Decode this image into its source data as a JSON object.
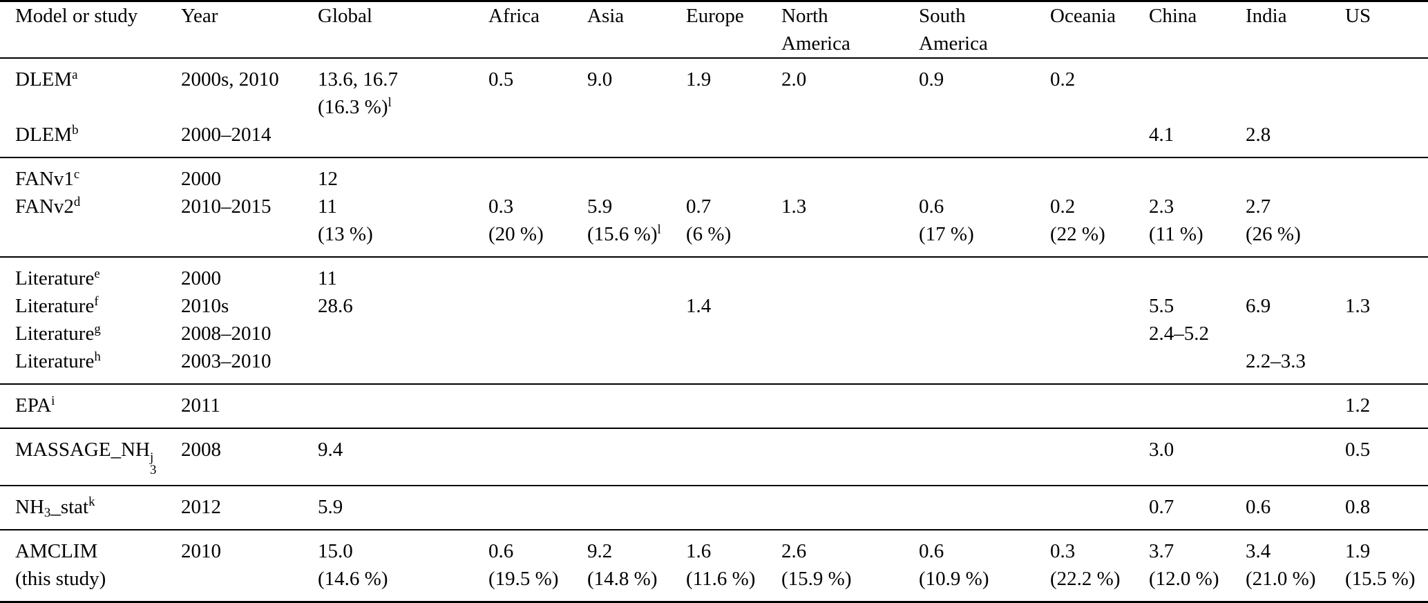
{
  "table": {
    "columns": [
      {
        "key": "model",
        "label_lines": [
          "Model or study"
        ]
      },
      {
        "key": "year",
        "label_lines": [
          "Year"
        ]
      },
      {
        "key": "global",
        "label_lines": [
          "Global"
        ]
      },
      {
        "key": "africa",
        "label_lines": [
          "Africa"
        ]
      },
      {
        "key": "asia",
        "label_lines": [
          "Asia"
        ]
      },
      {
        "key": "europe",
        "label_lines": [
          "Europe"
        ]
      },
      {
        "key": "north_america",
        "label_lines": [
          "North",
          "America"
        ]
      },
      {
        "key": "south_america",
        "label_lines": [
          "South",
          "America"
        ]
      },
      {
        "key": "oceania",
        "label_lines": [
          "Oceania"
        ]
      },
      {
        "key": "china",
        "label_lines": [
          "China"
        ]
      },
      {
        "key": "india",
        "label_lines": [
          "India"
        ]
      },
      {
        "key": "us",
        "label_lines": [
          "US"
        ]
      }
    ],
    "groups": [
      {
        "rows": [
          {
            "cells": {
              "model": [
                [
                  "DLEM",
                  {
                    "sup": "a"
                  }
                ]
              ],
              "year": [
                "2000s, 2010"
              ],
              "global": [
                "13.6, 16.7",
                [
                  "(16.3 %)",
                  {
                    "sup": "l"
                  }
                ]
              ],
              "africa": [
                "0.5"
              ],
              "asia": [
                "9.0"
              ],
              "europe": [
                "1.9"
              ],
              "north_america": [
                "2.0"
              ],
              "south_america": [
                "0.9"
              ],
              "oceania": [
                "0.2"
              ]
            }
          },
          {
            "cells": {
              "model": [
                [
                  "DLEM",
                  {
                    "sup": "b"
                  }
                ]
              ],
              "year": [
                "2000–2014"
              ],
              "china": [
                "4.1"
              ],
              "india": [
                "2.8"
              ]
            }
          }
        ]
      },
      {
        "rows": [
          {
            "cells": {
              "model": [
                [
                  "FANv1",
                  {
                    "sup": "c"
                  }
                ]
              ],
              "year": [
                "2000"
              ],
              "global": [
                "12"
              ]
            }
          },
          {
            "cells": {
              "model": [
                [
                  "FANv2",
                  {
                    "sup": "d"
                  }
                ]
              ],
              "year": [
                "2010–2015"
              ],
              "global": [
                "11",
                "(13 %)"
              ],
              "africa": [
                "0.3",
                "(20 %)"
              ],
              "asia": [
                "5.9",
                [
                  "(15.6 %)",
                  {
                    "sup": "l"
                  }
                ]
              ],
              "europe": [
                "0.7",
                "(6 %)"
              ],
              "north_america": [
                "1.3"
              ],
              "south_america": [
                "0.6",
                "(17 %)"
              ],
              "oceania": [
                "0.2",
                "(22 %)"
              ],
              "china": [
                "2.3",
                "(11 %)"
              ],
              "india": [
                "2.7",
                "(26 %)"
              ]
            }
          }
        ]
      },
      {
        "rows": [
          {
            "cells": {
              "model": [
                [
                  "Literature",
                  {
                    "sup": "e"
                  }
                ]
              ],
              "year": [
                "2000"
              ],
              "global": [
                "11"
              ]
            }
          },
          {
            "cells": {
              "model": [
                [
                  "Literature",
                  {
                    "sup": "f"
                  }
                ]
              ],
              "year": [
                "2010s"
              ],
              "global": [
                "28.6"
              ],
              "europe": [
                "1.4"
              ],
              "china": [
                "5.5"
              ],
              "india": [
                "6.9"
              ],
              "us": [
                "1.3"
              ]
            }
          },
          {
            "cells": {
              "model": [
                [
                  "Literature",
                  {
                    "sup": "g"
                  }
                ]
              ],
              "year": [
                "2008–2010"
              ],
              "china": [
                "2.4–5.2"
              ]
            }
          },
          {
            "cells": {
              "model": [
                [
                  "Literature",
                  {
                    "sup": "h"
                  }
                ]
              ],
              "year": [
                "2003–2010"
              ],
              "india": [
                "2.2–3.3"
              ]
            }
          }
        ]
      },
      {
        "rows": [
          {
            "cells": {
              "model": [
                [
                  "EPA",
                  {
                    "sup": "i"
                  }
                ]
              ],
              "year": [
                "2011"
              ],
              "us": [
                "1.2"
              ]
            }
          }
        ]
      },
      {
        "rows": [
          {
            "cells": {
              "model": [
                [
                  "MASSAGE_NH",
                  {
                    "stack": [
                      "j",
                      "3"
                    ]
                  }
                ]
              ],
              "year": [
                "2008"
              ],
              "global": [
                "9.4"
              ],
              "china": [
                "3.0"
              ],
              "us": [
                "0.5"
              ]
            }
          }
        ]
      },
      {
        "rows": [
          {
            "cells": {
              "model": [
                [
                  "NH",
                  {
                    "sub": "3"
                  },
                  "_stat",
                  {
                    "sup": "k"
                  }
                ]
              ],
              "year": [
                "2012"
              ],
              "global": [
                "5.9"
              ],
              "china": [
                "0.7"
              ],
              "india": [
                "0.6"
              ],
              "us": [
                "0.8"
              ]
            }
          }
        ]
      },
      {
        "rows": [
          {
            "cells": {
              "model": [
                "AMCLIM",
                "(this study)"
              ],
              "year": [
                "2010"
              ],
              "global": [
                "15.0",
                "(14.6 %)"
              ],
              "africa": [
                "0.6",
                "(19.5 %)"
              ],
              "asia": [
                "9.2",
                "(14.8 %)"
              ],
              "europe": [
                "1.6",
                "(11.6 %)"
              ],
              "north_america": [
                "2.6",
                "(15.9 %)"
              ],
              "south_america": [
                "0.6",
                "(10.9 %)"
              ],
              "oceania": [
                "0.3",
                "(22.2 %)"
              ],
              "china": [
                "3.7",
                "(12.0 %)"
              ],
              "india": [
                "3.4",
                "(21.0 %)"
              ],
              "us": [
                "1.9",
                "(15.5 %)"
              ]
            }
          }
        ]
      }
    ]
  }
}
